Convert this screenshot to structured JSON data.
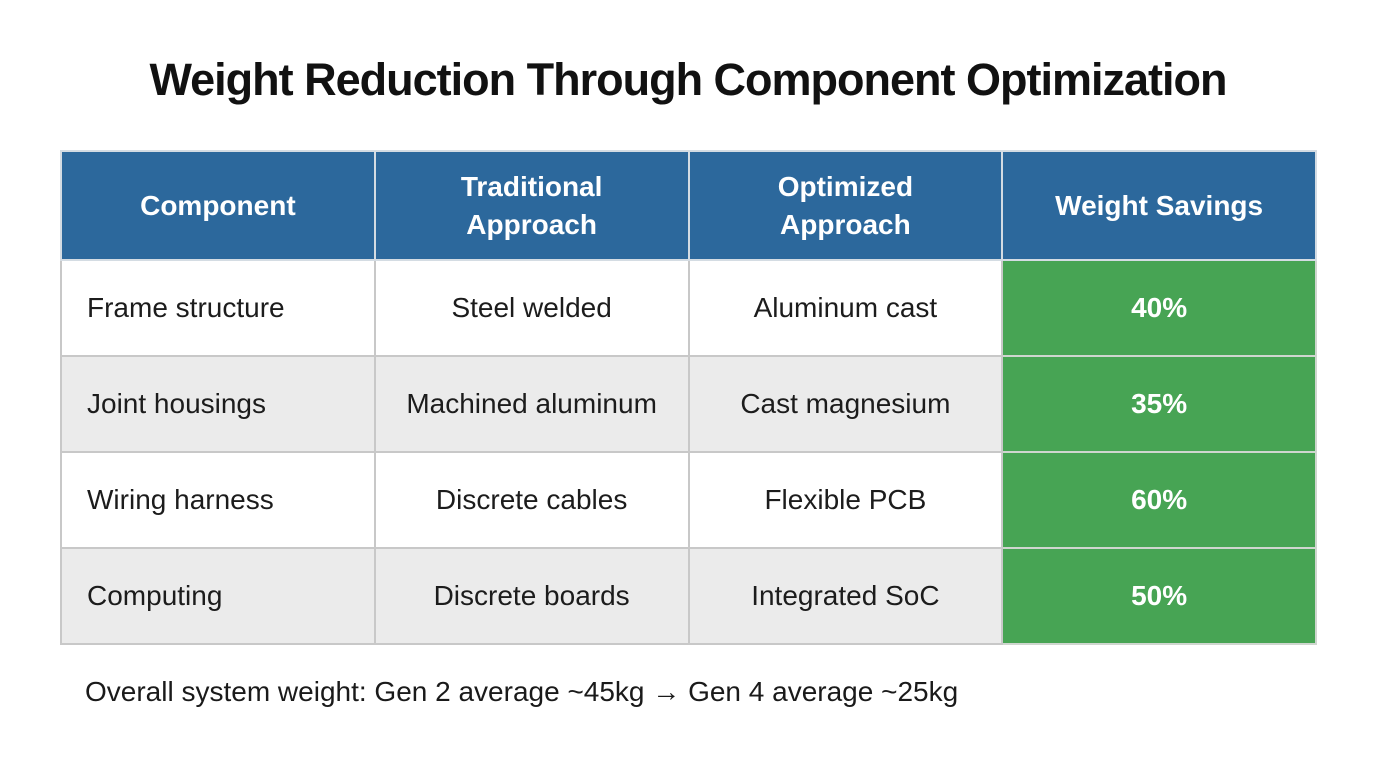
{
  "title": "Weight Reduction Through Component Optimization",
  "table": {
    "headers": [
      "Component",
      "Traditional\nApproach",
      "Optimized\nApproach",
      "Weight Savings"
    ],
    "rows": [
      {
        "component": "Frame structure",
        "traditional": "Steel welded",
        "optimized": "Aluminum cast",
        "savings": "40%"
      },
      {
        "component": "Joint housings",
        "traditional": "Machined aluminum",
        "optimized": "Cast magnesium",
        "savings": "35%"
      },
      {
        "component": "Wiring harness",
        "traditional": "Discrete cables",
        "optimized": "Flexible PCB",
        "savings": "60%"
      },
      {
        "component": "Computing",
        "traditional": "Discrete boards",
        "optimized": "Integrated SoC",
        "savings": "50%"
      }
    ]
  },
  "footer": {
    "note": "Overall system weight: Gen 2 average ~45kg → Gen 4 average ~25kg"
  },
  "colors": {
    "header_bg": "#2c689c",
    "savings_bg": "#47a454",
    "row_alt_bg": "#ebebeb",
    "header_text": "#ffffff",
    "savings_text": "#ffffff"
  },
  "chart_data": {
    "type": "table",
    "title": "Weight Reduction Through Component Optimization",
    "columns": [
      "Component",
      "Traditional Approach",
      "Optimized Approach",
      "Weight Savings"
    ],
    "rows": [
      [
        "Frame structure",
        "Steel welded",
        "Aluminum cast",
        "40%"
      ],
      [
        "Joint housings",
        "Machined aluminum",
        "Cast magnesium",
        "35%"
      ],
      [
        "Wiring harness",
        "Discrete cables",
        "Flexible PCB",
        "60%"
      ],
      [
        "Computing",
        "Discrete boards",
        "Integrated SoC",
        "50%"
      ]
    ],
    "weight_savings_pct": [
      40,
      35,
      60,
      50
    ],
    "annotations": [
      "Overall system weight: Gen 2 average ~45kg → Gen 4 average ~25kg"
    ]
  }
}
